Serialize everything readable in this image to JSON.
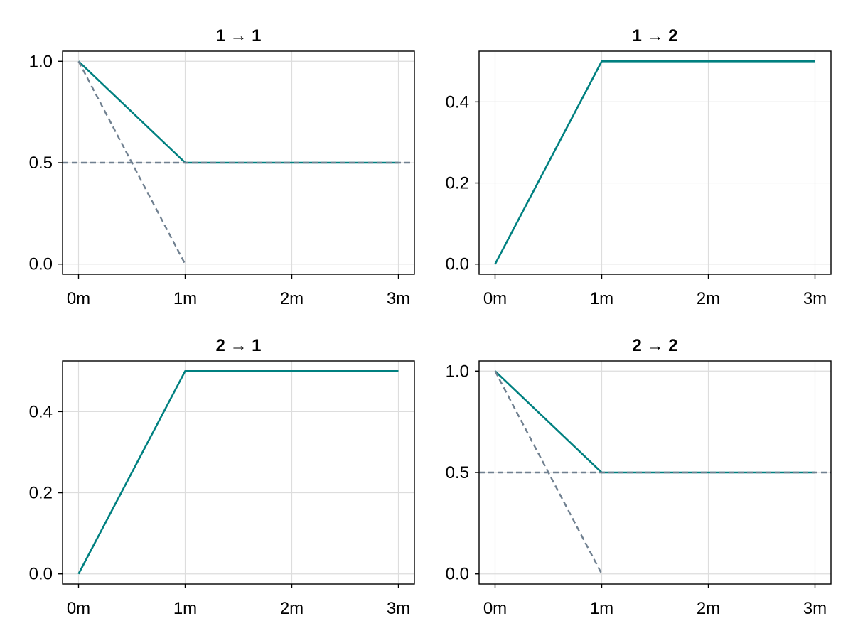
{
  "chart_data": [
    {
      "type": "line",
      "title": "1 → 1",
      "x_ticks": [
        0,
        1,
        2,
        3
      ],
      "x_tick_labels": [
        "0m",
        "1m",
        "2m",
        "3m"
      ],
      "y_ticks": [
        0.0,
        0.5,
        1.0
      ],
      "y_tick_labels": [
        "0.0",
        "0.5",
        "1.0"
      ],
      "xlim": [
        -0.15,
        3.15
      ],
      "ylim": [
        -0.05,
        1.05
      ],
      "grid": true,
      "series": [
        {
          "style": "solid",
          "color": "#008080",
          "x": [
            0,
            1,
            3
          ],
          "y": [
            1.0,
            0.5,
            0.5
          ]
        },
        {
          "style": "dashed",
          "color": "#708090",
          "x": [
            0,
            1
          ],
          "y": [
            1.0,
            0.0
          ]
        },
        {
          "style": "dashed",
          "color": "#708090",
          "x": [
            -0.15,
            3.15
          ],
          "y": [
            0.5,
            0.5
          ]
        }
      ]
    },
    {
      "type": "line",
      "title": "1 → 2",
      "x_ticks": [
        0,
        1,
        2,
        3
      ],
      "x_tick_labels": [
        "0m",
        "1m",
        "2m",
        "3m"
      ],
      "y_ticks": [
        0.0,
        0.2,
        0.4
      ],
      "y_tick_labels": [
        "0.0",
        "0.2",
        "0.4"
      ],
      "xlim": [
        -0.15,
        3.15
      ],
      "ylim": [
        -0.025,
        0.525
      ],
      "grid": true,
      "series": [
        {
          "style": "solid",
          "color": "#008080",
          "x": [
            0,
            1,
            3
          ],
          "y": [
            0.0,
            0.5,
            0.5
          ]
        }
      ]
    },
    {
      "type": "line",
      "title": "2 → 1",
      "x_ticks": [
        0,
        1,
        2,
        3
      ],
      "x_tick_labels": [
        "0m",
        "1m",
        "2m",
        "3m"
      ],
      "y_ticks": [
        0.0,
        0.2,
        0.4
      ],
      "y_tick_labels": [
        "0.0",
        "0.2",
        "0.4"
      ],
      "xlim": [
        -0.15,
        3.15
      ],
      "ylim": [
        -0.025,
        0.525
      ],
      "grid": true,
      "series": [
        {
          "style": "solid",
          "color": "#008080",
          "x": [
            0,
            1,
            3
          ],
          "y": [
            0.0,
            0.5,
            0.5
          ]
        }
      ]
    },
    {
      "type": "line",
      "title": "2 → 2",
      "x_ticks": [
        0,
        1,
        2,
        3
      ],
      "x_tick_labels": [
        "0m",
        "1m",
        "2m",
        "3m"
      ],
      "y_ticks": [
        0.0,
        0.5,
        1.0
      ],
      "y_tick_labels": [
        "0.0",
        "0.5",
        "1.0"
      ],
      "xlim": [
        -0.15,
        3.15
      ],
      "ylim": [
        -0.05,
        1.05
      ],
      "grid": true,
      "series": [
        {
          "style": "solid",
          "color": "#008080",
          "x": [
            0,
            1,
            3
          ],
          "y": [
            1.0,
            0.5,
            0.5
          ]
        },
        {
          "style": "dashed",
          "color": "#708090",
          "x": [
            0,
            1
          ],
          "y": [
            1.0,
            0.0
          ]
        },
        {
          "style": "dashed",
          "color": "#708090",
          "x": [
            -0.15,
            3.15
          ],
          "y": [
            0.5,
            0.5
          ]
        }
      ]
    }
  ]
}
